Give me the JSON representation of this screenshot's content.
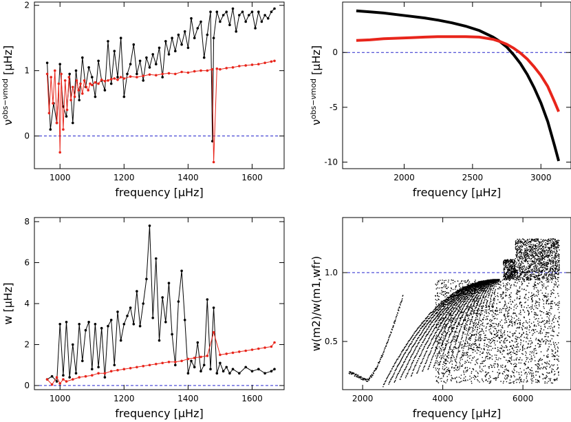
{
  "chart_data": [
    {
      "panel": "top-left",
      "type": "line",
      "xlabel": "frequency [μHz]",
      "ylabel_main": "ν",
      "ylabel_sup": "obs−ν",
      "ylabel_sup2": "mod",
      "ylabel_unit": "[μHz]",
      "xlim": [
        920,
        1700
      ],
      "ylim": [
        -0.5,
        2.05
      ],
      "xticks": [
        1000,
        1200,
        1400,
        1600
      ],
      "yticks": [
        0,
        1,
        2
      ],
      "reference_line": 0,
      "series": [
        {
          "color": "#000000",
          "x": [
            960,
            970,
            980,
            990,
            1000,
            1010,
            1020,
            1030,
            1040,
            1050,
            1060,
            1070,
            1080,
            1090,
            1100,
            1110,
            1120,
            1130,
            1140,
            1150,
            1160,
            1170,
            1180,
            1190,
            1200,
            1210,
            1220,
            1230,
            1240,
            1250,
            1260,
            1270,
            1280,
            1290,
            1300,
            1310,
            1320,
            1330,
            1340,
            1350,
            1360,
            1370,
            1380,
            1390,
            1400,
            1410,
            1420,
            1430,
            1440,
            1450,
            1460,
            1470,
            1476,
            1480,
            1490,
            1500,
            1510,
            1520,
            1530,
            1540,
            1550,
            1560,
            1570,
            1580,
            1590,
            1600,
            1610,
            1620,
            1630,
            1640,
            1650,
            1660,
            1670
          ],
          "y": [
            1.12,
            0.1,
            0.5,
            0.2,
            1.1,
            0.45,
            0.3,
            0.95,
            0.2,
            1.0,
            0.55,
            1.2,
            0.75,
            1.05,
            0.9,
            0.6,
            1.15,
            0.85,
            0.7,
            1.45,
            0.8,
            1.3,
            0.9,
            1.5,
            0.6,
            0.95,
            1.1,
            1.4,
            0.95,
            1.15,
            0.85,
            1.2,
            1.05,
            1.25,
            1.1,
            1.35,
            0.9,
            1.45,
            1.25,
            1.5,
            1.3,
            1.55,
            1.4,
            1.6,
            1.35,
            1.8,
            1.5,
            1.65,
            1.75,
            1.2,
            1.55,
            1.9,
            -0.08,
            1.5,
            1.9,
            1.75,
            1.85,
            1.9,
            1.7,
            1.95,
            1.6,
            1.85,
            1.9,
            1.75,
            1.85,
            1.9,
            1.65,
            1.9,
            1.75,
            1.85,
            1.8,
            1.9,
            1.95
          ]
        },
        {
          "color": "#e8251b",
          "x": [
            960,
            966,
            972,
            978,
            984,
            990,
            996,
            1000,
            1004,
            1010,
            1016,
            1022,
            1028,
            1034,
            1040,
            1046,
            1052,
            1058,
            1064,
            1070,
            1076,
            1082,
            1088,
            1094,
            1100,
            1110,
            1120,
            1130,
            1140,
            1150,
            1160,
            1170,
            1180,
            1190,
            1200,
            1220,
            1240,
            1260,
            1280,
            1300,
            1320,
            1340,
            1360,
            1380,
            1400,
            1420,
            1440,
            1460,
            1475,
            1480,
            1490,
            1500,
            1520,
            1540,
            1560,
            1580,
            1600,
            1620,
            1640,
            1660,
            1670
          ],
          "y": [
            0.95,
            0.35,
            0.9,
            0.5,
            1.0,
            0.2,
            0.8,
            -0.25,
            0.95,
            0.1,
            0.85,
            0.4,
            0.9,
            0.55,
            0.75,
            0.6,
            0.85,
            0.7,
            0.8,
            0.65,
            0.85,
            0.75,
            0.7,
            0.8,
            0.78,
            0.82,
            0.8,
            0.86,
            0.84,
            0.85,
            0.87,
            0.88,
            0.86,
            0.9,
            0.88,
            0.91,
            0.9,
            0.92,
            0.94,
            0.93,
            0.95,
            0.96,
            0.95,
            0.98,
            0.97,
            0.99,
            1.0,
            1.0,
            1.02,
            -0.4,
            1.03,
            1.02,
            1.04,
            1.05,
            1.07,
            1.08,
            1.09,
            1.1,
            1.12,
            1.14,
            1.15
          ]
        }
      ]
    },
    {
      "panel": "top-right",
      "type": "line",
      "xlabel": "frequency [μHz]",
      "ylabel_main": "ν",
      "ylabel_sup": "obs−ν",
      "ylabel_sup2": "mod",
      "ylabel_unit": "[μHz]",
      "xlim": [
        1550,
        3220
      ],
      "ylim": [
        -10.6,
        4.6
      ],
      "xticks": [
        2000,
        2500,
        3000
      ],
      "yticks": [
        0,
        -5,
        -10
      ],
      "reference_line": 0,
      "series": [
        {
          "color": "#000000",
          "x": [
            1650,
            1750,
            1850,
            1950,
            2050,
            2150,
            2250,
            2350,
            2450,
            2550,
            2650,
            2700,
            2750,
            2800,
            2850,
            2900,
            2950,
            3000,
            3050,
            3100,
            3130
          ],
          "y": [
            3.8,
            3.7,
            3.6,
            3.45,
            3.3,
            3.15,
            2.95,
            2.7,
            2.4,
            2.0,
            1.4,
            1.0,
            0.5,
            -0.2,
            -1.0,
            -2.0,
            -3.2,
            -4.6,
            -6.3,
            -8.5,
            -9.9
          ]
        },
        {
          "color": "#e8251b",
          "x": [
            1650,
            1750,
            1850,
            1950,
            2050,
            2150,
            2250,
            2350,
            2450,
            2550,
            2650,
            2700,
            2750,
            2800,
            2850,
            2900,
            2950,
            3000,
            3050,
            3100,
            3130
          ],
          "y": [
            1.1,
            1.15,
            1.25,
            1.3,
            1.35,
            1.4,
            1.45,
            1.45,
            1.45,
            1.4,
            1.2,
            1.0,
            0.75,
            0.4,
            -0.05,
            -0.6,
            -1.3,
            -2.1,
            -3.1,
            -4.5,
            -5.4
          ]
        }
      ]
    },
    {
      "panel": "bottom-left",
      "type": "line",
      "xlabel": "frequency [μHz]",
      "ylabel_main": "w",
      "ylabel_unit": "[μHz]",
      "xlim": [
        920,
        1700
      ],
      "ylim": [
        -0.2,
        8.2
      ],
      "xticks": [
        1000,
        1200,
        1400,
        1600
      ],
      "yticks": [
        0,
        2,
        4,
        6,
        8
      ],
      "reference_line": 0,
      "series": [
        {
          "color": "#000000",
          "x": [
            960,
            975,
            990,
            1000,
            1010,
            1020,
            1030,
            1040,
            1050,
            1060,
            1070,
            1080,
            1090,
            1100,
            1110,
            1120,
            1130,
            1140,
            1150,
            1160,
            1170,
            1180,
            1190,
            1200,
            1210,
            1220,
            1230,
            1240,
            1250,
            1260,
            1270,
            1280,
            1290,
            1300,
            1310,
            1320,
            1330,
            1340,
            1350,
            1360,
            1370,
            1380,
            1390,
            1400,
            1410,
            1420,
            1430,
            1440,
            1450,
            1460,
            1470,
            1480,
            1490,
            1500,
            1510,
            1520,
            1530,
            1540,
            1560,
            1580,
            1600,
            1620,
            1640,
            1660,
            1670
          ],
          "y": [
            0.3,
            0.45,
            0.2,
            3.0,
            0.5,
            3.1,
            0.4,
            2.0,
            0.6,
            3.0,
            1.2,
            2.7,
            3.1,
            0.8,
            3.0,
            0.9,
            2.8,
            0.4,
            2.9,
            3.2,
            1.0,
            3.6,
            2.2,
            3.0,
            3.4,
            3.8,
            3.0,
            4.6,
            2.9,
            4.0,
            5.2,
            7.8,
            3.3,
            6.2,
            2.2,
            4.3,
            3.1,
            5.0,
            2.5,
            1.0,
            4.1,
            5.6,
            3.2,
            0.6,
            1.2,
            0.9,
            2.1,
            0.7,
            1.0,
            4.2,
            0.8,
            3.8,
            0.6,
            1.1,
            0.7,
            0.9,
            0.6,
            0.8,
            0.6,
            0.9,
            0.7,
            0.8,
            0.6,
            0.7,
            0.8
          ]
        },
        {
          "color": "#e8251b",
          "x": [
            960,
            975,
            990,
            1000,
            1010,
            1020,
            1040,
            1060,
            1080,
            1100,
            1120,
            1140,
            1160,
            1180,
            1200,
            1220,
            1240,
            1260,
            1280,
            1300,
            1320,
            1340,
            1360,
            1380,
            1400,
            1420,
            1440,
            1460,
            1480,
            1500,
            1520,
            1540,
            1560,
            1580,
            1600,
            1620,
            1640,
            1660,
            1670
          ],
          "y": [
            0.3,
            0.05,
            0.4,
            0.1,
            0.3,
            0.2,
            0.3,
            0.4,
            0.45,
            0.5,
            0.6,
            0.6,
            0.7,
            0.75,
            0.8,
            0.85,
            0.9,
            0.95,
            1.0,
            1.05,
            1.1,
            1.15,
            1.15,
            1.2,
            1.3,
            1.35,
            1.4,
            1.45,
            2.6,
            1.5,
            1.55,
            1.6,
            1.65,
            1.7,
            1.75,
            1.8,
            1.85,
            1.9,
            2.1
          ]
        }
      ]
    },
    {
      "panel": "bottom-right",
      "type": "scatter",
      "xlabel": "frequency [μHz]",
      "ylabel": "w(m2)/w(m1,wfr)",
      "xlim": [
        1500,
        7200
      ],
      "ylim": [
        0.15,
        1.4
      ],
      "xticks": [
        2000,
        4000,
        6000
      ],
      "yticks": [
        0.5,
        1.0
      ],
      "ytick_labels": [
        "0.5",
        "1.0"
      ],
      "reference_line": 1.0
    }
  ]
}
